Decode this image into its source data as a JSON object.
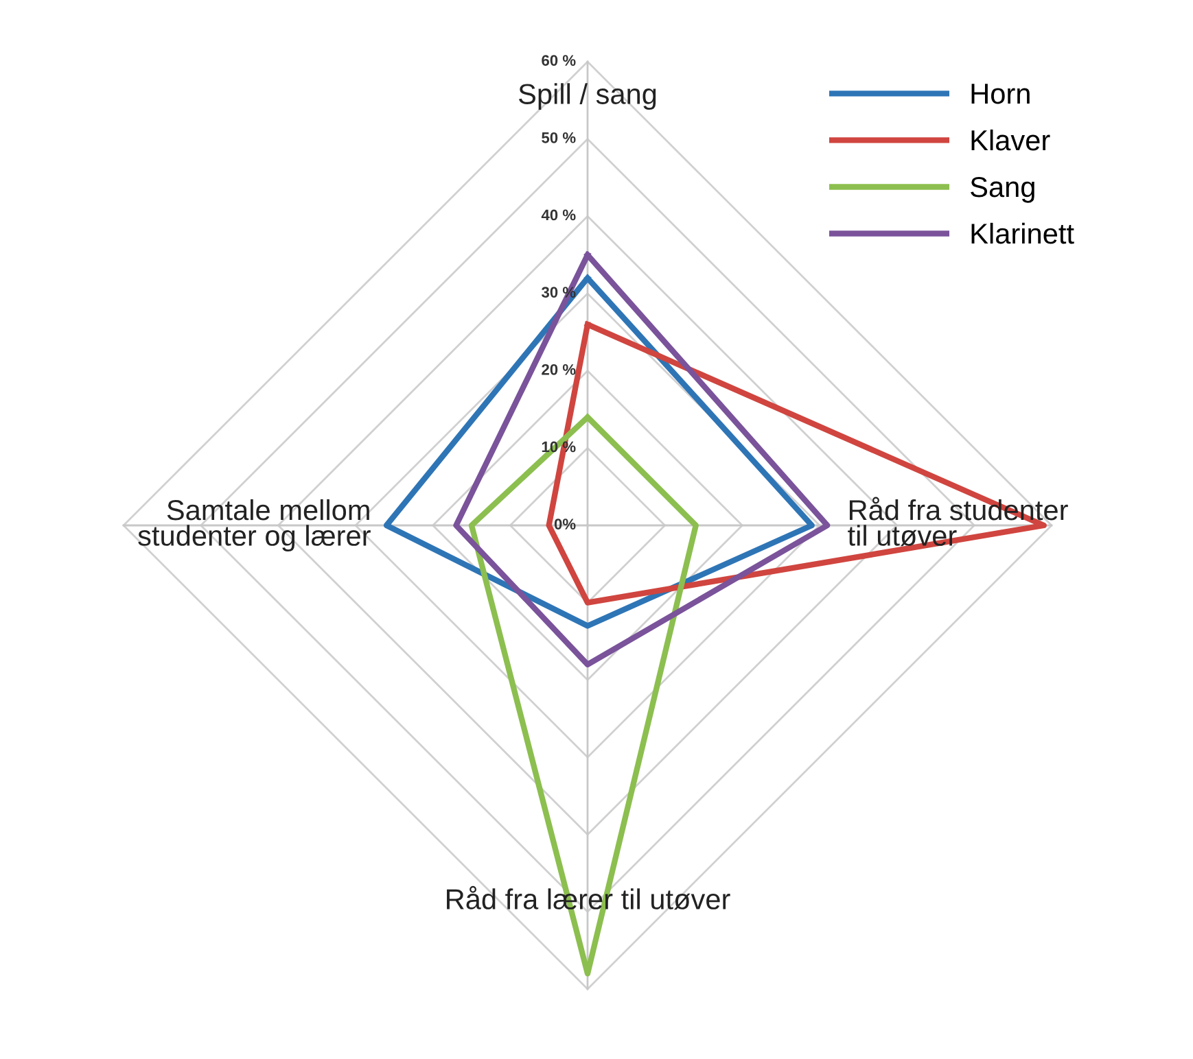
{
  "chart_data": {
    "type": "radar",
    "categories": [
      "Spill / sang",
      "Råd fra studenter til utøver",
      "Råd fra lærer til utøver",
      "Samtale mellom studenter og lærer"
    ],
    "series": [
      {
        "name": "Horn",
        "color": "#2e75b6",
        "values": [
          32,
          29,
          13,
          26
        ]
      },
      {
        "name": "Klaver",
        "color": "#d0453f",
        "values": [
          26,
          59,
          10,
          5
        ]
      },
      {
        "name": "Sang",
        "color": "#8cbf4f",
        "values": [
          14,
          14,
          58,
          15
        ]
      },
      {
        "name": "Klarinett",
        "color": "#7a539b",
        "values": [
          35,
          31,
          18,
          17
        ]
      }
    ],
    "ylim": [
      0,
      60
    ],
    "yticks": [
      {
        "value": 0,
        "label": "0%"
      },
      {
        "value": 10,
        "label": "10 %"
      },
      {
        "value": 20,
        "label": "20 %"
      },
      {
        "value": 30,
        "label": "30 %"
      },
      {
        "value": 40,
        "label": "40 %"
      },
      {
        "value": 50,
        "label": "50 %"
      },
      {
        "value": 60,
        "label": "60 %"
      }
    ],
    "grid": true,
    "legend": "top right"
  }
}
